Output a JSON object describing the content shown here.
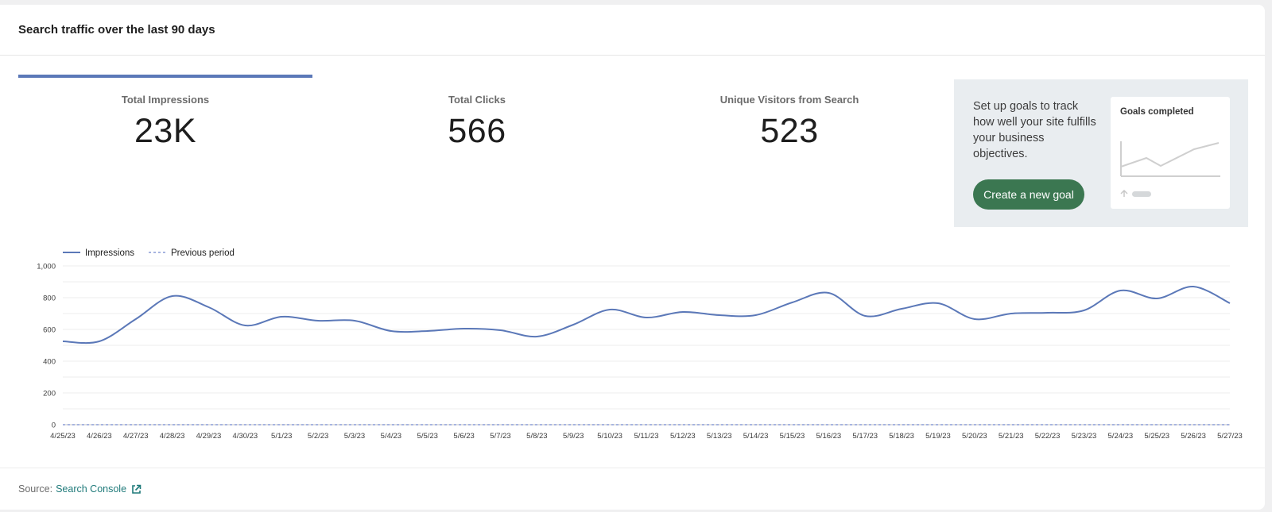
{
  "header": {
    "title": "Search traffic over the last 90 days"
  },
  "metrics": [
    {
      "label": "Total Impressions",
      "value": "23K",
      "active": true
    },
    {
      "label": "Total Clicks",
      "value": "566",
      "active": false
    },
    {
      "label": "Unique Visitors from Search",
      "value": "523",
      "active": false
    }
  ],
  "goals": {
    "text": "Set up goals to track how well your site fulfills your business objectives.",
    "button_label": "Create a new goal",
    "preview_title": "Goals completed"
  },
  "colors": {
    "accent": "#5b78b8",
    "goal_button": "#3b7751",
    "link": "#1f7a7a"
  },
  "chart_data": {
    "type": "line",
    "legend_position": "top-left",
    "grid": true,
    "ylim": [
      0,
      1000
    ],
    "yticks": [
      "0",
      "200",
      "400",
      "600",
      "800",
      "1,000"
    ],
    "ytick_values": [
      0,
      200,
      400,
      600,
      800,
      1000
    ],
    "categories": [
      "4/25/23",
      "4/26/23",
      "4/27/23",
      "4/28/23",
      "4/29/23",
      "4/30/23",
      "5/1/23",
      "5/2/23",
      "5/3/23",
      "5/4/23",
      "5/5/23",
      "5/6/23",
      "5/7/23",
      "5/8/23",
      "5/9/23",
      "5/10/23",
      "5/11/23",
      "5/12/23",
      "5/13/23",
      "5/14/23",
      "5/15/23",
      "5/16/23",
      "5/17/23",
      "5/18/23",
      "5/19/23",
      "5/20/23",
      "5/21/23",
      "5/22/23",
      "5/23/23",
      "5/24/23",
      "5/25/23",
      "5/26/23",
      "5/27/23"
    ],
    "series": [
      {
        "name": "Impressions",
        "style": "solid",
        "color": "#5b78b8",
        "values": [
          525,
          525,
          665,
          810,
          740,
          625,
          680,
          655,
          655,
          590,
          590,
          605,
          595,
          555,
          630,
          725,
          675,
          710,
          690,
          690,
          770,
          830,
          685,
          730,
          765,
          665,
          700,
          705,
          720,
          845,
          795,
          870,
          765
        ]
      },
      {
        "name": "Previous period",
        "style": "dashed",
        "color": "#8a9bd6",
        "values": [
          0,
          0,
          0,
          0,
          0,
          0,
          0,
          0,
          0,
          0,
          0,
          0,
          0,
          0,
          0,
          0,
          0,
          0,
          0,
          0,
          0,
          0,
          0,
          0,
          0,
          0,
          0,
          0,
          0,
          0,
          0,
          0,
          0
        ]
      }
    ]
  },
  "footer": {
    "source_label": "Source:",
    "link_label": "Search Console"
  }
}
